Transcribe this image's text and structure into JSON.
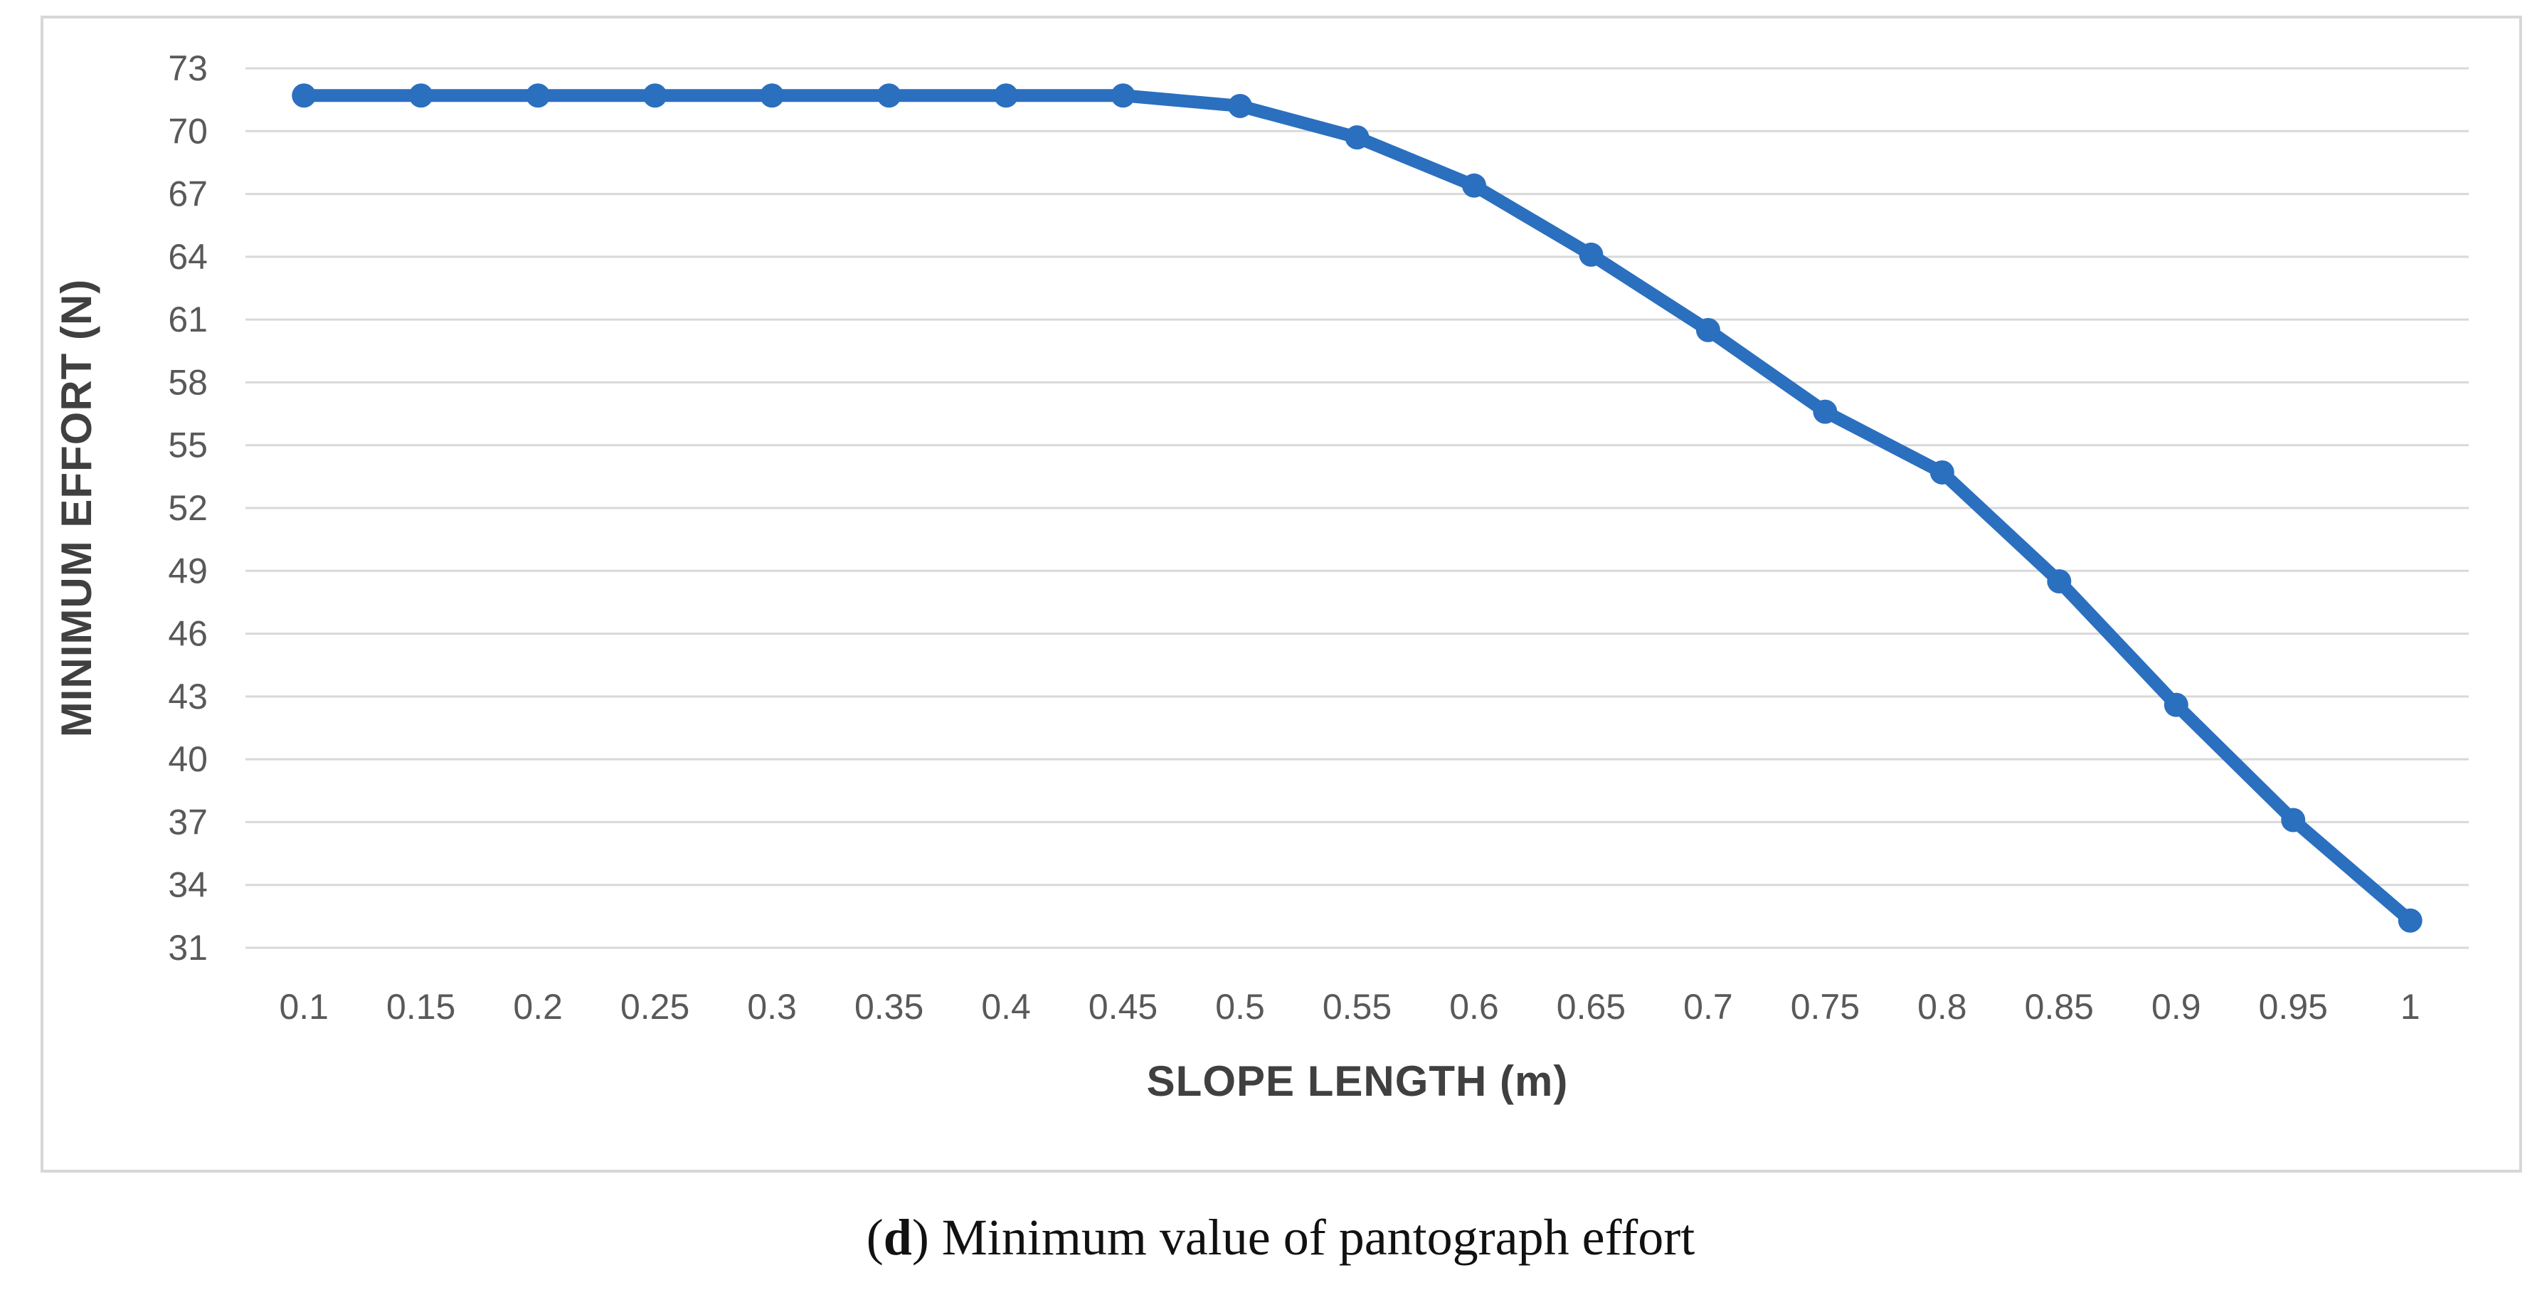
{
  "figure": {
    "caption_open": "(",
    "caption_label": "d",
    "caption_rest": ") Minimum value of pantograph effort"
  },
  "chart_data": {
    "type": "line",
    "title": "",
    "xlabel": "SLOPE LENGTH (m)",
    "ylabel": "MINIMUM EFFORT (N)",
    "x": [
      0.1,
      0.15,
      0.2,
      0.25,
      0.3,
      0.35,
      0.4,
      0.45,
      0.5,
      0.55,
      0.6,
      0.65,
      0.7,
      0.75,
      0.8,
      0.85,
      0.9,
      0.95,
      1
    ],
    "x_tick_labels": [
      "0.1",
      "0.15",
      "0.2",
      "0.25",
      "0.3",
      "0.35",
      "0.4",
      "0.45",
      "0.5",
      "0.55",
      "0.6",
      "0.65",
      "0.7",
      "0.75",
      "0.8",
      "0.85",
      "0.9",
      "0.95",
      "1"
    ],
    "series": [
      {
        "name": "Minimum effort",
        "values": [
          71.7,
          71.7,
          71.7,
          71.7,
          71.7,
          71.7,
          71.7,
          71.7,
          71.2,
          69.7,
          67.4,
          64.1,
          60.5,
          56.6,
          53.7,
          48.5,
          42.6,
          37.1,
          32.3
        ]
      }
    ],
    "ylim": [
      31,
      73
    ],
    "y_tick_step": 3,
    "y_tick_labels": [
      "31",
      "34",
      "37",
      "40",
      "43",
      "46",
      "49",
      "52",
      "55",
      "58",
      "61",
      "64",
      "67",
      "70",
      "73"
    ],
    "grid": true,
    "legend_visible": false,
    "marker": "circle",
    "colors": {
      "series": "#2B6FBF",
      "gridline": "#D9D9D9",
      "tick_label": "#595959",
      "axis_title": "#404040",
      "panel_border": "#D7D7D7",
      "background": "#FFFFFF"
    }
  }
}
